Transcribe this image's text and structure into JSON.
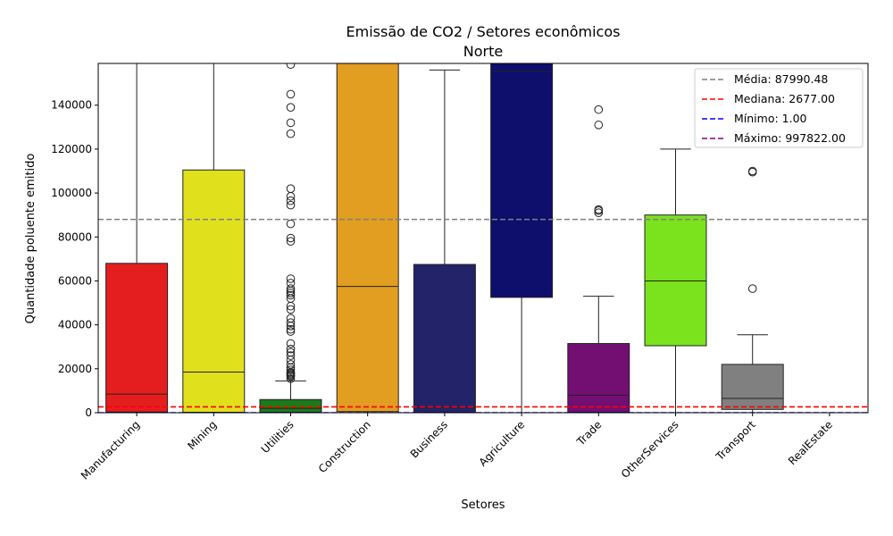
{
  "chart_data": {
    "type": "box",
    "title": "Emissão de CO2 / Setores econômicos",
    "subtitle": "Norte",
    "xlabel": "Setores",
    "ylabel": "Quantidade poluente emitido",
    "ylim": [
      0,
      159000
    ],
    "yticks": [
      0,
      20000,
      40000,
      60000,
      80000,
      100000,
      120000,
      140000
    ],
    "ytick_labels": [
      "0",
      "20000",
      "40000",
      "60000",
      "80000",
      "100000",
      "120000",
      "140000"
    ],
    "categories": [
      "Manufacturing",
      "Mining",
      "Utilities",
      "Construction",
      "Business",
      "Agriculture",
      "Trade",
      "OtherServices",
      "Transport",
      "RealEstate"
    ],
    "boxes": [
      {
        "name": "Manufacturing",
        "color": "#e41e1e",
        "q1": 300,
        "median": 8500,
        "q3": 68000,
        "whislo": 0,
        "whishi": 159000,
        "fliers": []
      },
      {
        "name": "Mining",
        "color": "#e0e01d",
        "q1": 200,
        "median": 18500,
        "q3": 110500,
        "whislo": 0,
        "whishi": 159000,
        "fliers": []
      },
      {
        "name": "Utilities",
        "color": "#1a7a1a",
        "q1": 200,
        "median": 2000,
        "q3": 6000,
        "whislo": 0,
        "whishi": 14500,
        "fliers": [
          15500,
          16500,
          17000,
          17500,
          18000,
          18500,
          19500,
          20500,
          22000,
          24000,
          26000,
          27500,
          29000,
          31500,
          37000,
          38000,
          39500,
          41000,
          43000,
          47000,
          48500,
          52000,
          53500,
          54500,
          55500,
          56500,
          59000,
          61000,
          78000,
          79500,
          86000,
          94500,
          96500,
          98500,
          102000,
          127000,
          132000,
          139000,
          145000,
          158500
        ]
      },
      {
        "name": "Construction",
        "color": "#e19e20",
        "q1": 500,
        "median": 57500,
        "q3": 159000,
        "whislo": 0,
        "whishi": 159000,
        "fliers": []
      },
      {
        "name": "Business",
        "color": "#23236a",
        "q1": 0,
        "median": 2500,
        "q3": 67500,
        "whislo": 0,
        "whishi": 156000,
        "fliers": []
      },
      {
        "name": "Agriculture",
        "color": "#0e0e6c",
        "q1": 52500,
        "median": 155500,
        "q3": 159000,
        "whislo": 0,
        "whishi": 159000,
        "fliers": []
      },
      {
        "name": "Trade",
        "color": "#730e73",
        "q1": 200,
        "median": 8000,
        "q3": 31500,
        "whislo": 0,
        "whishi": 53000,
        "fliers": [
          91000,
          92000,
          92500,
          131000,
          138000
        ]
      },
      {
        "name": "OtherServices",
        "color": "#7be21e",
        "q1": 30500,
        "median": 60000,
        "q3": 90000,
        "whislo": 0,
        "whishi": 120000,
        "fliers": []
      },
      {
        "name": "Transport",
        "color": "#808080",
        "q1": 1500,
        "median": 6500,
        "q3": 22000,
        "whislo": 0,
        "whishi": 35500,
        "fliers": [
          56500,
          109500,
          110000
        ]
      },
      {
        "name": "RealEstate",
        "color": "#2020d8",
        "q1": 0,
        "median": 0,
        "q3": 0,
        "whislo": 0,
        "whishi": 0,
        "fliers": []
      }
    ],
    "reference_lines": [
      {
        "label": "Média: 87990.48",
        "value": 87990.48,
        "color": "#808080"
      },
      {
        "label": "Mediana: 2677.00",
        "value": 2677.0,
        "color": "#ff0000"
      },
      {
        "label": "Mínimo: 1.00",
        "value": 1.0,
        "color": "#0000ff"
      },
      {
        "label": "Máximo: 997822.00",
        "value": 997822.0,
        "color": "#800080"
      }
    ],
    "legend_position": "top-right",
    "grid": false
  }
}
